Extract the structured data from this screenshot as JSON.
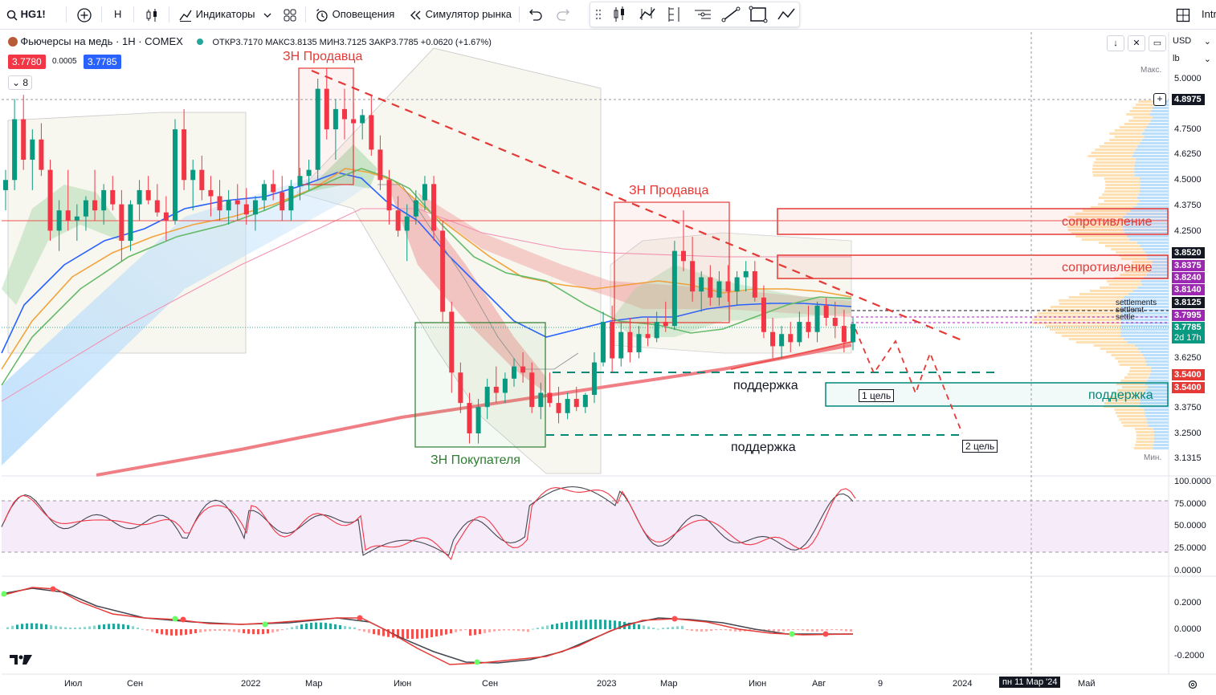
{
  "toolbar": {
    "symbol": "HG1!",
    "interval": "H",
    "indicators_label": "Индикаторы",
    "alerts_label": "Оповещения",
    "simulator_label": "Симулятор рынка",
    "right_cut": "Intr"
  },
  "legend": {
    "title": "Фьючерсы на медь · 1Н · COMEX",
    "ohlc": "ОТКР3.7170 МАКС3.8135 МИН3.7125 ЗАКР3.7785 +0.0620 (+1.67%)",
    "bid": "3.7780",
    "spread": "0.0005",
    "ask": "3.7785",
    "indicators_count": "8"
  },
  "top_right": {
    "currency": "USD",
    "unit": "lb"
  },
  "price_axis": {
    "labels": [
      "5.0000",
      "4.7500",
      "4.6250",
      "4.5000",
      "4.3750",
      "4.2500",
      "3.6250",
      "3.3750",
      "3.2500",
      "3.1315"
    ],
    "max_label": "Макс.",
    "min_label": "Мин.",
    "crosshair": "4.8975",
    "tags": [
      {
        "text": "3.8520",
        "color": "#131722"
      },
      {
        "text": "3.8375",
        "color": "#9c27b0"
      },
      {
        "text": "3.8240",
        "color": "#9c27b0"
      },
      {
        "text": "3.8140",
        "color": "#9c27b0"
      },
      {
        "text": "3.8125",
        "color": "#131722"
      },
      {
        "text": "3.7995",
        "color": "#9c27b0"
      },
      {
        "text": "3.7785",
        "color": "#089981"
      },
      {
        "text": "2d 17h",
        "color": "#089981"
      },
      {
        "text": "3.5400",
        "color": "#e53935"
      },
      {
        "text": "3.5400",
        "color": "#e53935"
      }
    ],
    "settlements": [
      "settlements",
      "settlemt",
      "settle"
    ]
  },
  "osc_axis": [
    "100.0000",
    "75.0000",
    "50.0000",
    "25.0000",
    "0.0000"
  ],
  "macd_axis": [
    "0.2000",
    "0.0000",
    "-0.2000"
  ],
  "time_axis": [
    {
      "label": "Июл"
    },
    {
      "label": "Сен"
    },
    {
      "label": "2022"
    },
    {
      "label": "Мар"
    },
    {
      "label": "Июн"
    },
    {
      "label": "Сен"
    },
    {
      "label": "2023"
    },
    {
      "label": "Мар"
    },
    {
      "label": "Июн"
    },
    {
      "label": "Авг"
    },
    {
      "label": "9"
    },
    {
      "label": "2024"
    },
    {
      "label": "Май"
    }
  ],
  "time_crosshair": "пн 11 Мар '24",
  "annotations": {
    "seller_zone_1": "ЗН Продавца",
    "seller_zone_2": "ЗН Продавца",
    "buyer_zone": "ЗН Покупателя",
    "resistance_1": "сопротивление",
    "resistance_2": "сопротивление",
    "support_1": "поддержка",
    "support_2": "поддержка",
    "support_3": "поддержка",
    "target_1": "1 цель",
    "target_2": "2 цель"
  },
  "colors": {
    "up": "#089981",
    "down": "#f23645",
    "accent": "#2962ff",
    "seller": "#e53935",
    "buyer": "#2e7d32",
    "resistance": "#e53935",
    "support": "#00897b"
  },
  "candles": [
    [
      4.45,
      4.55,
      4.35,
      4.5
    ],
    [
      4.5,
      4.9,
      4.45,
      4.8
    ],
    [
      4.8,
      4.92,
      4.55,
      4.6
    ],
    [
      4.6,
      4.75,
      4.45,
      4.7
    ],
    [
      4.7,
      4.78,
      4.52,
      4.55
    ],
    [
      4.55,
      4.6,
      4.2,
      4.25
    ],
    [
      4.25,
      4.4,
      4.15,
      4.35
    ],
    [
      4.35,
      4.55,
      4.25,
      4.3
    ],
    [
      4.3,
      4.38,
      4.2,
      4.32
    ],
    [
      4.32,
      4.42,
      4.25,
      4.4
    ],
    [
      4.4,
      4.55,
      4.3,
      4.35
    ],
    [
      4.35,
      4.48,
      4.28,
      4.45
    ],
    [
      4.45,
      4.52,
      4.35,
      4.38
    ],
    [
      4.38,
      4.45,
      4.1,
      4.2
    ],
    [
      4.2,
      4.4,
      4.15,
      4.38
    ],
    [
      4.38,
      4.5,
      4.3,
      4.45
    ],
    [
      4.45,
      4.52,
      4.38,
      4.4
    ],
    [
      4.4,
      4.48,
      4.32,
      4.34
    ],
    [
      4.34,
      4.42,
      4.2,
      4.3
    ],
    [
      4.3,
      4.8,
      4.28,
      4.75
    ],
    [
      4.75,
      4.85,
      4.45,
      4.5
    ],
    [
      4.5,
      4.6,
      4.35,
      4.55
    ],
    [
      4.55,
      4.62,
      4.4,
      4.45
    ],
    [
      4.45,
      4.52,
      4.32,
      4.42
    ],
    [
      4.42,
      4.5,
      4.3,
      4.35
    ],
    [
      4.35,
      4.45,
      4.28,
      4.4
    ],
    [
      4.4,
      4.48,
      4.3,
      4.38
    ],
    [
      4.38,
      4.46,
      4.28,
      4.33
    ],
    [
      4.33,
      4.42,
      4.25,
      4.4
    ],
    [
      4.4,
      4.5,
      4.35,
      4.48
    ],
    [
      4.48,
      4.55,
      4.4,
      4.44
    ],
    [
      4.44,
      4.52,
      4.3,
      4.35
    ],
    [
      4.35,
      4.5,
      4.3,
      4.47
    ],
    [
      4.47,
      4.56,
      4.4,
      4.52
    ],
    [
      4.52,
      4.6,
      4.45,
      4.55
    ],
    [
      4.55,
      5.0,
      4.5,
      4.95
    ],
    [
      4.95,
      5.05,
      4.7,
      4.75
    ],
    [
      4.75,
      4.9,
      4.6,
      4.85
    ],
    [
      4.85,
      4.95,
      4.7,
      4.8
    ],
    [
      4.8,
      4.88,
      4.72,
      4.78
    ],
    [
      4.78,
      4.85,
      4.7,
      4.82
    ],
    [
      4.82,
      4.92,
      4.62,
      4.65
    ],
    [
      4.65,
      4.72,
      4.45,
      4.5
    ],
    [
      4.5,
      4.55,
      4.28,
      4.35
    ],
    [
      4.35,
      4.42,
      4.22,
      4.25
    ],
    [
      4.25,
      4.38,
      4.1,
      4.32
    ],
    [
      4.32,
      4.45,
      4.28,
      4.4
    ],
    [
      4.4,
      4.52,
      4.35,
      4.48
    ],
    [
      4.48,
      4.52,
      4.2,
      4.25
    ],
    [
      4.25,
      4.3,
      3.8,
      3.85
    ],
    [
      3.85,
      3.9,
      3.45,
      3.55
    ],
    [
      3.55,
      3.6,
      3.35,
      3.4
    ],
    [
      3.4,
      3.45,
      3.2,
      3.25
    ],
    [
      3.25,
      3.42,
      3.2,
      3.38
    ],
    [
      3.38,
      3.52,
      3.32,
      3.48
    ],
    [
      3.48,
      3.58,
      3.4,
      3.45
    ],
    [
      3.45,
      3.55,
      3.4,
      3.52
    ],
    [
      3.52,
      3.62,
      3.48,
      3.58
    ],
    [
      3.58,
      3.65,
      3.5,
      3.55
    ],
    [
      3.55,
      3.6,
      3.35,
      3.38
    ],
    [
      3.38,
      3.5,
      3.32,
      3.45
    ],
    [
      3.45,
      3.55,
      3.38,
      3.4
    ],
    [
      3.4,
      3.48,
      3.3,
      3.35
    ],
    [
      3.35,
      3.45,
      3.32,
      3.42
    ],
    [
      3.42,
      3.48,
      3.36,
      3.38
    ],
    [
      3.38,
      3.45,
      3.35,
      3.44
    ],
    [
      3.44,
      3.65,
      3.4,
      3.6
    ],
    [
      3.6,
      3.85,
      3.58,
      3.8
    ],
    [
      3.8,
      3.88,
      3.55,
      3.62
    ],
    [
      3.62,
      3.8,
      3.58,
      3.75
    ],
    [
      3.75,
      3.82,
      3.6,
      3.65
    ],
    [
      3.65,
      3.78,
      3.62,
      3.74
    ],
    [
      3.74,
      3.82,
      3.68,
      3.72
    ],
    [
      3.72,
      3.85,
      3.7,
      3.8
    ],
    [
      3.8,
      3.9,
      3.75,
      3.78
    ],
    [
      3.78,
      4.2,
      3.76,
      4.15
    ],
    [
      4.15,
      4.35,
      4.05,
      4.1
    ],
    [
      4.1,
      4.22,
      3.9,
      3.95
    ],
    [
      3.95,
      4.05,
      3.85,
      4.02
    ],
    [
      4.02,
      4.08,
      3.88,
      3.92
    ],
    [
      3.92,
      4.05,
      3.88,
      4.0
    ],
    [
      4.0,
      4.08,
      3.9,
      3.95
    ],
    [
      3.95,
      4.05,
      3.88,
      4.02
    ],
    [
      4.02,
      4.1,
      3.95,
      4.05
    ],
    [
      4.05,
      4.1,
      3.9,
      3.92
    ],
    [
      3.92,
      3.98,
      3.72,
      3.75
    ],
    [
      3.75,
      3.82,
      3.62,
      3.68
    ],
    [
      3.68,
      3.78,
      3.62,
      3.74
    ],
    [
      3.74,
      3.8,
      3.65,
      3.7
    ],
    [
      3.7,
      3.85,
      3.68,
      3.8
    ],
    [
      3.8,
      3.88,
      3.72,
      3.75
    ],
    [
      3.75,
      3.9,
      3.7,
      3.88
    ],
    [
      3.88,
      3.92,
      3.78,
      3.82
    ],
    [
      3.82,
      3.9,
      3.72,
      3.78
    ],
    [
      3.78,
      3.86,
      3.65,
      3.7
    ],
    [
      3.7,
      3.82,
      3.66,
      3.79
    ]
  ]
}
